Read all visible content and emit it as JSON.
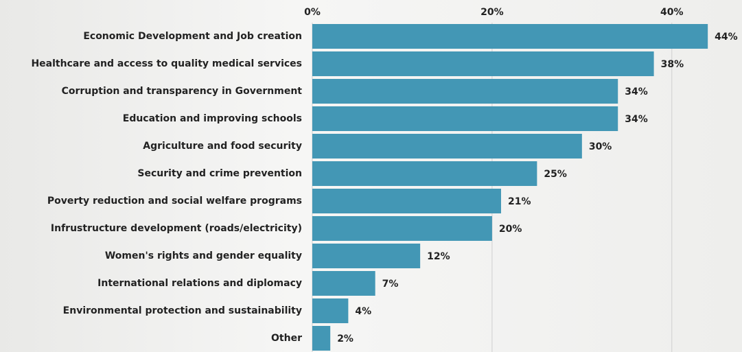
{
  "chart_data": {
    "type": "barh",
    "categories": [
      "Economic Development and Job creation",
      "Healthcare and access to quality medical services",
      "Corruption and transparency in Government",
      "Education and improving schools",
      "Agriculture and food security",
      "Security and crime prevention",
      "Poverty reduction and social welfare programs",
      "Infrustructure development (roads/electricity)",
      "Women's rights and gender equality",
      "International relations and diplomacy",
      "Environmental protection and sustainability",
      "Other"
    ],
    "values": [
      44,
      38,
      34,
      34,
      30,
      25,
      21,
      20,
      12,
      7,
      4,
      2
    ],
    "value_labels": [
      "44%",
      "38%",
      "34%",
      "34%",
      "30%",
      "25%",
      "21%",
      "20%",
      "12%",
      "7%",
      "4%",
      "2%"
    ],
    "color": "#4397b5",
    "xlim": [
      0,
      47.5
    ],
    "xticks": [
      {
        "value": 0,
        "label": "0%"
      },
      {
        "value": 20,
        "label": "20%"
      },
      {
        "value": 40,
        "label": "40%"
      }
    ],
    "grid": true
  }
}
